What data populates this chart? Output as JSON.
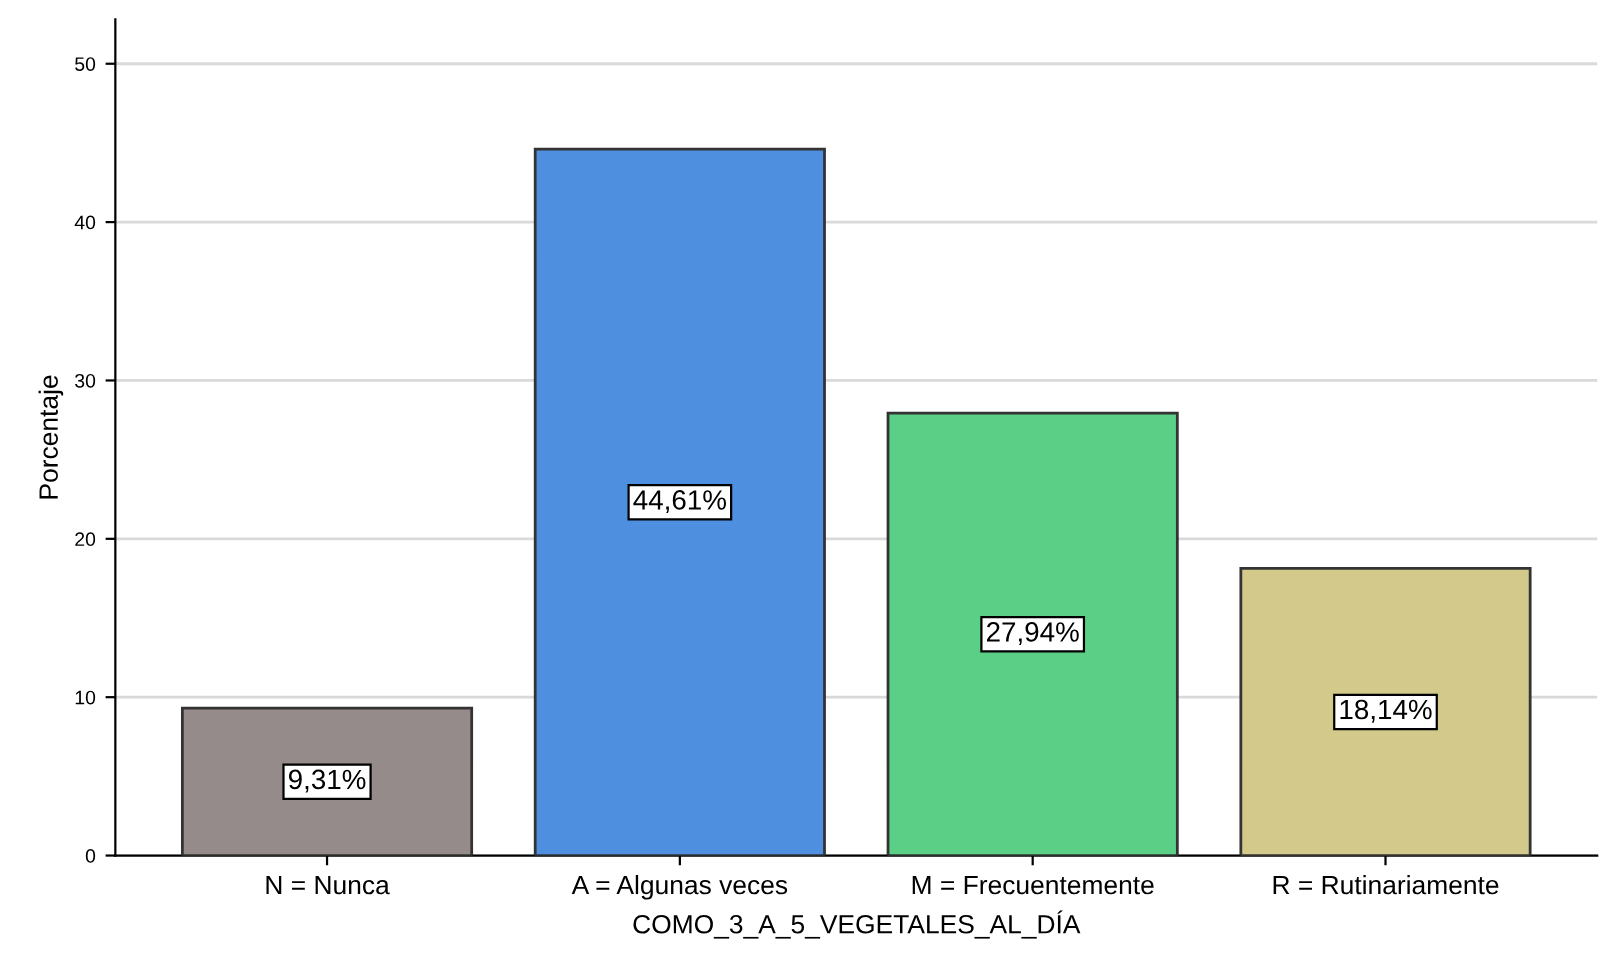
{
  "chart_data": {
    "type": "bar",
    "xlabel": "COMO_3_A_5_VEGETALES_AL_DÍA",
    "ylabel": "Porcentaje",
    "categories": [
      "N = Nunca",
      "A = Algunas veces",
      "M = Frecuentemente",
      "R = Rutinariamente"
    ],
    "values": [
      9.31,
      44.61,
      27.94,
      18.14
    ],
    "value_labels": [
      "9,31%",
      "44,61%",
      "27,94%",
      "18,14%"
    ],
    "colors": [
      "#958b8b",
      "#4f8fe0",
      "#5ccf87",
      "#d2c98a"
    ],
    "ylim": [
      0,
      52.8
    ],
    "yticks": [
      0,
      10,
      20,
      30,
      40,
      50
    ],
    "grid": "y",
    "legend": false
  }
}
